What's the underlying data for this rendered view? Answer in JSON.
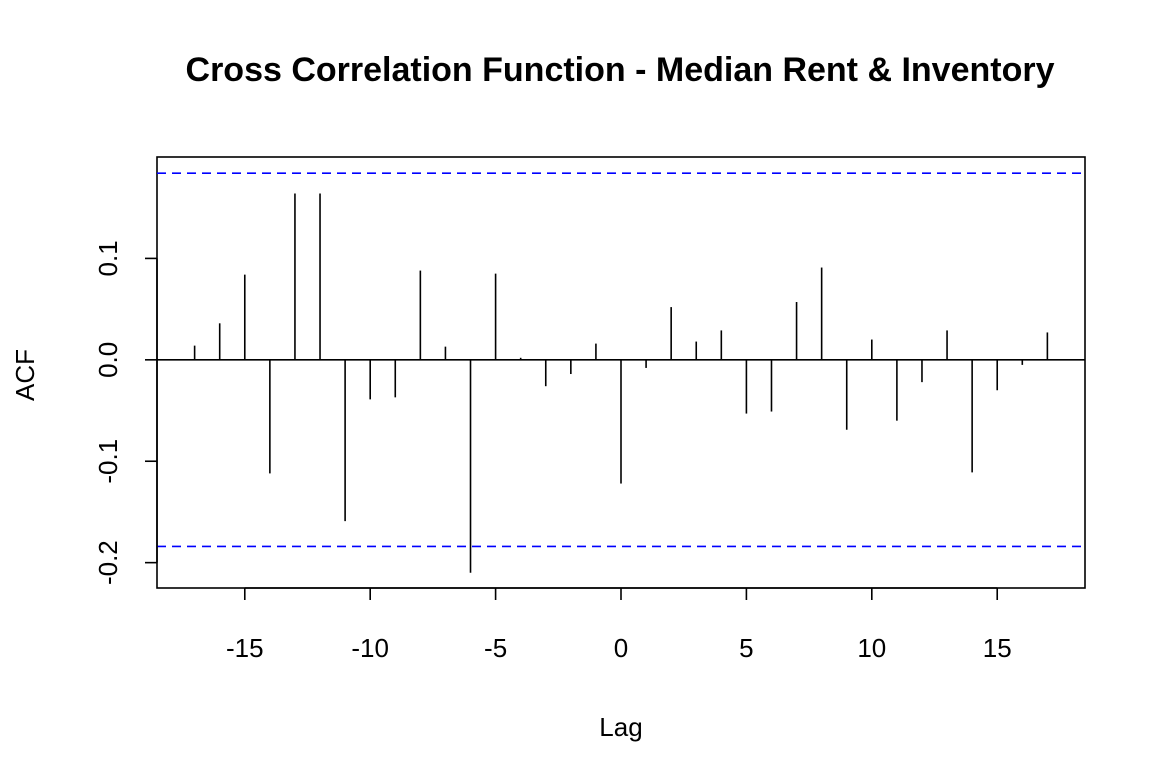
{
  "chart_data": {
    "type": "bar",
    "title": "Cross Correlation Function - Median Rent & Inventory",
    "xlabel": "Lag",
    "ylabel": "ACF",
    "xlim": [
      -18.5,
      18.5
    ],
    "ylim": [
      -0.225,
      0.2
    ],
    "x_ticks": [
      -15,
      -10,
      -5,
      0,
      5,
      10,
      15
    ],
    "x_tick_labels": [
      "-15",
      "-10",
      "-5",
      "0",
      "5",
      "10",
      "15"
    ],
    "y_ticks": [
      -0.2,
      -0.1,
      0.0,
      0.1
    ],
    "y_tick_labels": [
      "-0.2",
      "-0.1",
      "0.0",
      "0.1"
    ],
    "confidence_limit": 0.184,
    "confidence_color": "#0000ff",
    "grid": false,
    "lags": [
      -17,
      -16,
      -15,
      -14,
      -13,
      -12,
      -11,
      -10,
      -9,
      -8,
      -7,
      -6,
      -5,
      -4,
      -3,
      -2,
      -1,
      0,
      1,
      2,
      3,
      4,
      5,
      6,
      7,
      8,
      9,
      10,
      11,
      12,
      13,
      14,
      15,
      16,
      17
    ],
    "values": [
      0.014,
      0.036,
      0.084,
      -0.112,
      0.164,
      0.164,
      -0.159,
      -0.039,
      -0.037,
      0.088,
      0.013,
      -0.21,
      0.085,
      0.002,
      -0.026,
      -0.014,
      0.016,
      -0.122,
      -0.008,
      0.052,
      0.018,
      0.029,
      -0.053,
      -0.051,
      0.057,
      0.091,
      -0.069,
      0.02,
      -0.06,
      -0.022,
      0.029,
      -0.111,
      -0.03,
      -0.005,
      0.027
    ]
  }
}
